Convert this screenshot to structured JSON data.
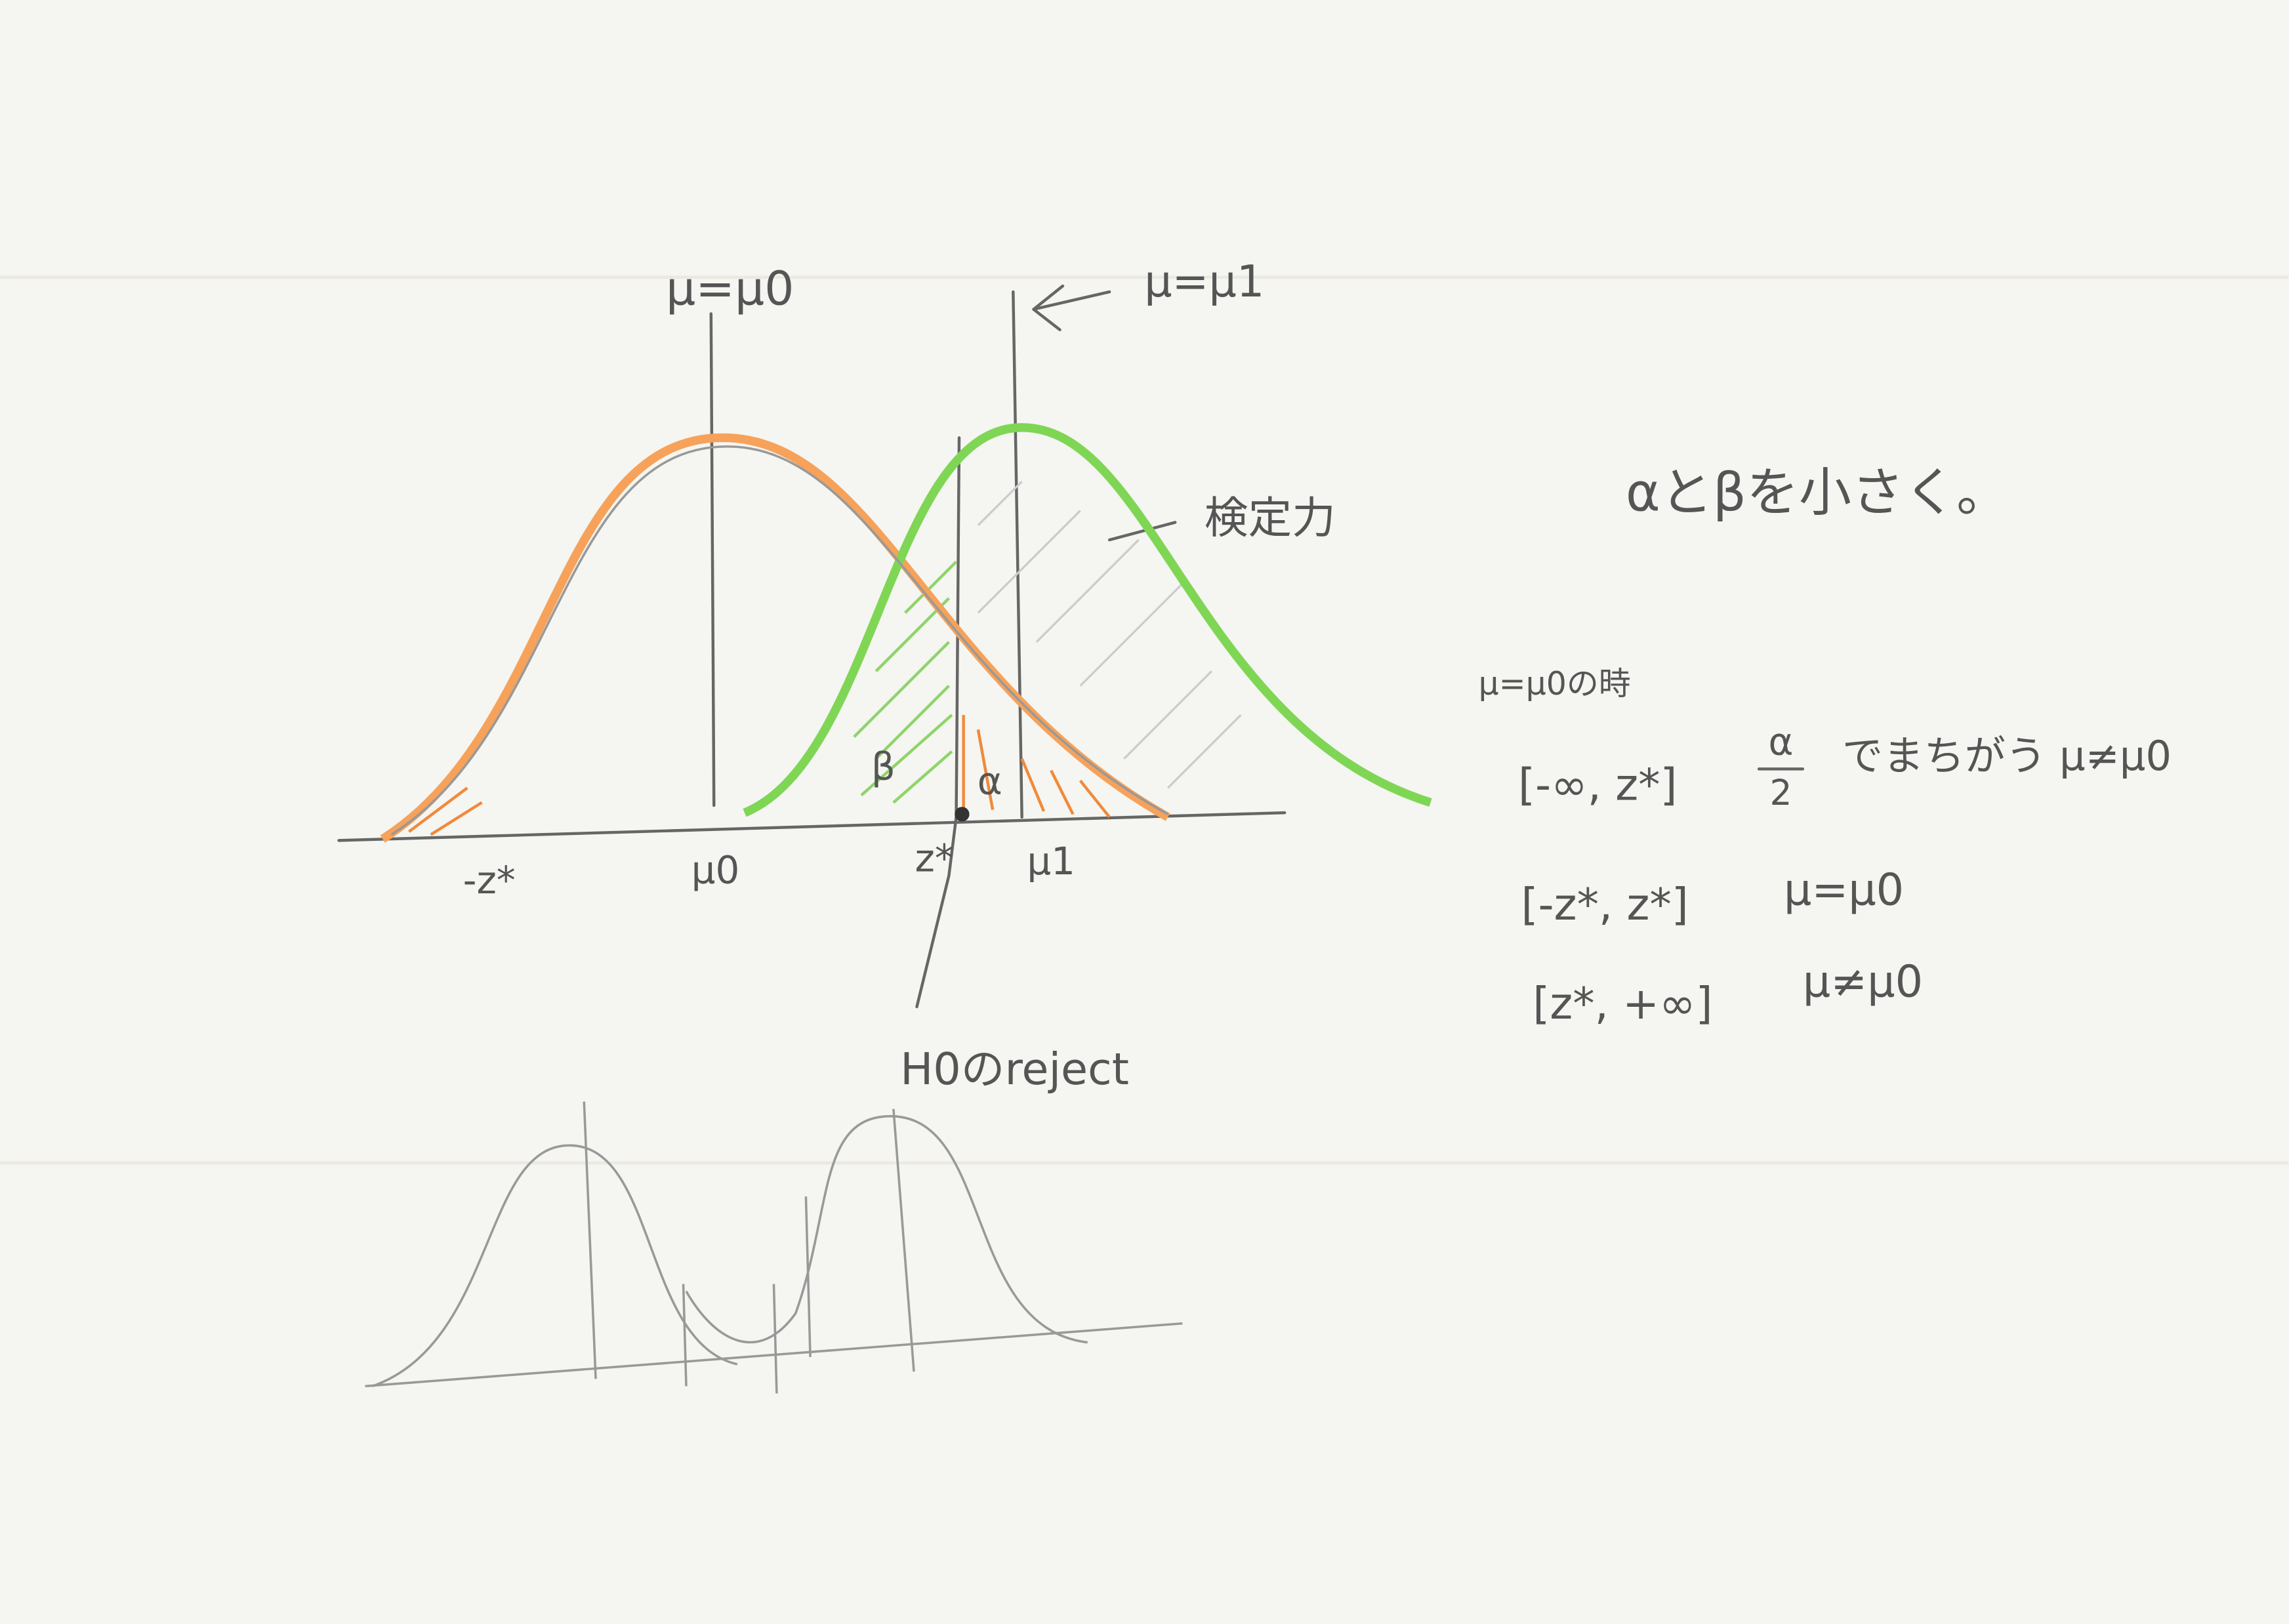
{
  "diagram": {
    "top_labels": {
      "mu0_line": "μ=μ0",
      "mu1_line": "μ=μ1"
    },
    "power_label": "検定力",
    "axis_labels": [
      "-z*",
      "μ0",
      "z*",
      "μ1"
    ],
    "region_labels": {
      "beta": "β",
      "alpha": "α"
    },
    "reject_label": "H0のreject"
  },
  "notes": {
    "heading": "αとβを小さく。",
    "condition": "μ=μ0の時",
    "rows": [
      {
        "interval": "[-∞, z*]",
        "fraction_num": "α",
        "fraction_den": "2",
        "text": "でまちがう μ≠μ0"
      },
      {
        "interval": "[-z*, z*]",
        "text": "μ=μ0"
      },
      {
        "interval": "[z*, +∞]",
        "text": "μ≠μ0"
      }
    ]
  }
}
